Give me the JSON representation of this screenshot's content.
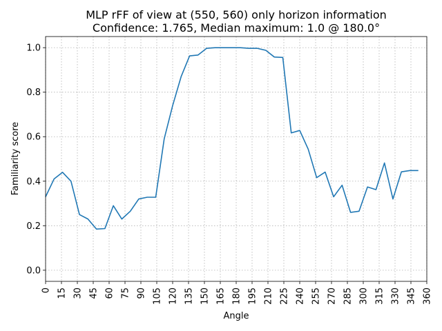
{
  "chart_data": {
    "type": "line",
    "title": "MLP rFF of view at (550, 560) only horizon information",
    "subtitle": "Confidence: 1.765, Median maximum: 1.0 @ 180.0°",
    "xlabel": "Angle",
    "ylabel": "Familiarity score",
    "xlim": [
      0,
      360
    ],
    "ylim": [
      -0.05,
      1.05
    ],
    "xticks": [
      0,
      15,
      30,
      45,
      60,
      75,
      90,
      105,
      120,
      135,
      150,
      165,
      180,
      195,
      210,
      225,
      240,
      255,
      270,
      285,
      300,
      315,
      330,
      345,
      360
    ],
    "yticks": [
      0.0,
      0.2,
      0.4,
      0.6,
      0.8,
      1.0
    ],
    "ytick_labels": [
      "0.0",
      "0.2",
      "0.4",
      "0.6",
      "0.8",
      "1.0"
    ],
    "grid": true,
    "line_color": "#1f77b4",
    "series": [
      {
        "x": [
          0,
          8,
          16,
          24,
          32,
          40,
          48,
          56,
          64,
          72,
          80,
          88,
          96,
          104,
          112,
          120,
          128,
          136,
          144,
          152,
          160,
          168,
          176,
          184,
          192,
          200,
          208,
          216,
          224,
          232,
          240,
          248,
          256,
          264,
          272,
          280,
          288,
          296,
          304,
          312,
          320,
          328,
          336,
          344,
          352
        ],
        "y": [
          0.33,
          0.41,
          0.44,
          0.4,
          0.25,
          0.23,
          0.185,
          0.187,
          0.29,
          0.23,
          0.265,
          0.32,
          0.328,
          0.328,
          0.59,
          0.74,
          0.87,
          0.963,
          0.967,
          0.997,
          1.0,
          1.0,
          1.0,
          1.0,
          0.997,
          0.997,
          0.988,
          0.958,
          0.956,
          0.617,
          0.628,
          0.544,
          0.416,
          0.441,
          0.33,
          0.382,
          0.26,
          0.265,
          0.374,
          0.362,
          0.482,
          0.32,
          0.442,
          0.448,
          0.448
        ]
      }
    ]
  }
}
